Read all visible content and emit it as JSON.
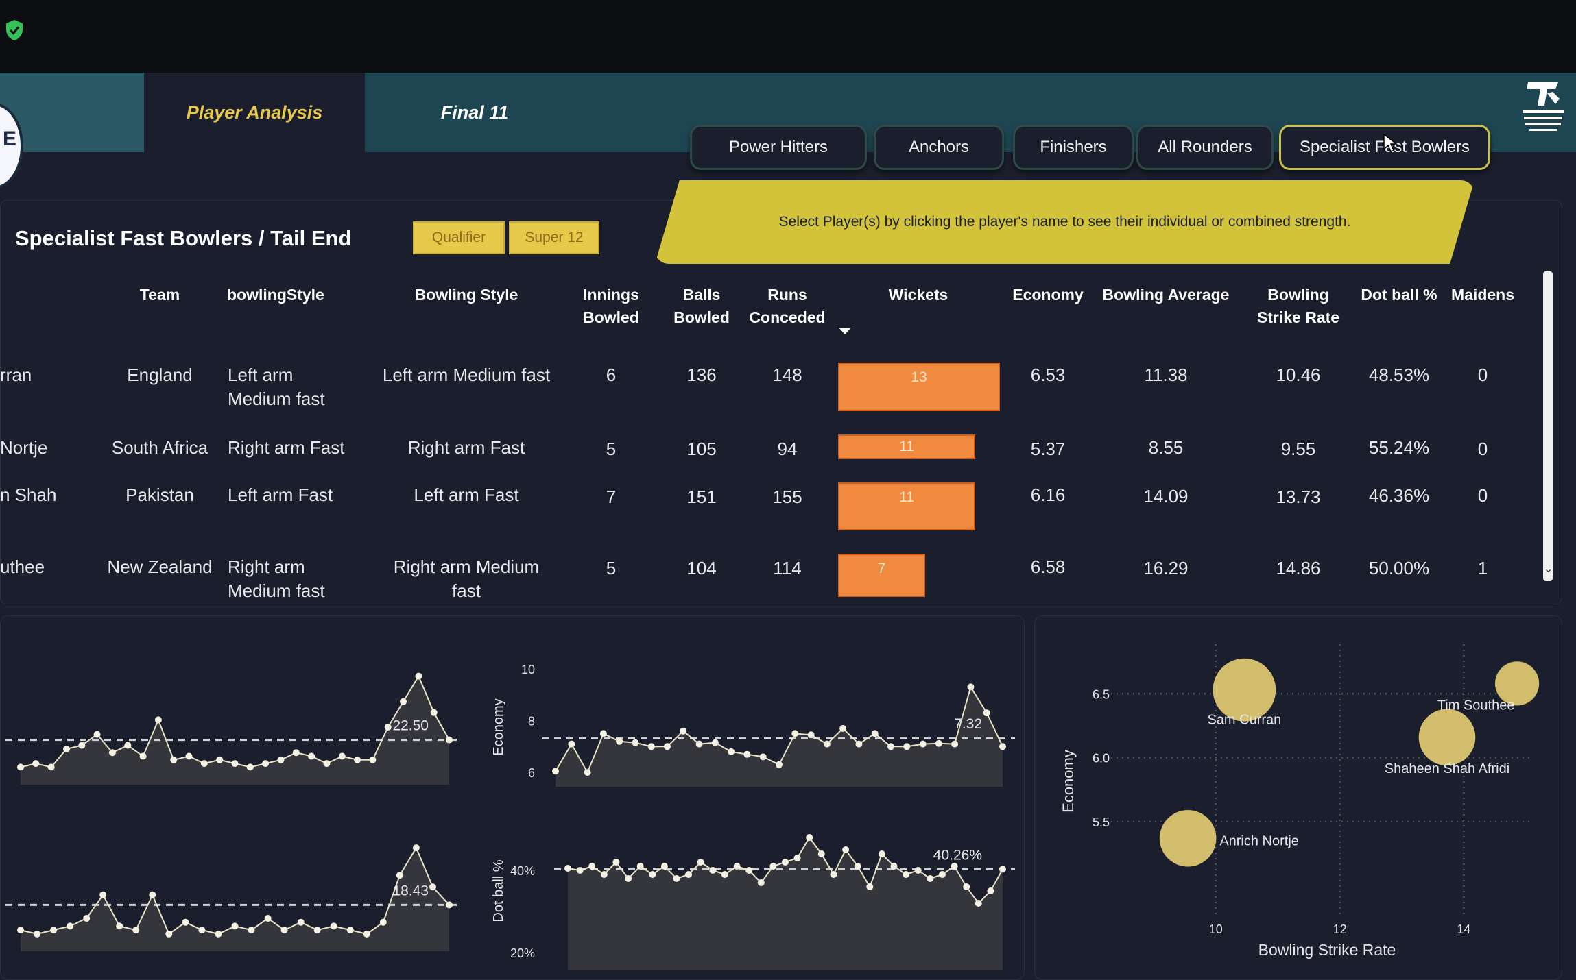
{
  "nav": {
    "tabs": [
      {
        "label": "Player Analysis"
      },
      {
        "label": "Final 11"
      }
    ],
    "logo_partial": "E"
  },
  "segments": [
    {
      "label": "Power Hitters"
    },
    {
      "label": "Anchors"
    },
    {
      "label": "Finishers"
    },
    {
      "label": "All Rounders"
    },
    {
      "label": "Specialist Fast Bowlers",
      "active": true
    }
  ],
  "banner": {
    "text": "Select Player(s) by clicking the player's name to see their individual or combined strength."
  },
  "section": {
    "title": "Specialist Fast Bowlers / Tail End",
    "filters": [
      {
        "label": "Qualifier"
      },
      {
        "label": "Super 12"
      }
    ]
  },
  "table": {
    "headers": {
      "team": "Team",
      "bowlingStyle": "bowlingStyle",
      "bowling_style": "Bowling Style",
      "innings_1": "Innings",
      "innings_2": "Bowled",
      "balls_1": "Balls",
      "balls_2": "Bowled",
      "runs_1": "Runs",
      "runs_2": "Conceded",
      "wickets": "Wickets",
      "economy": "Economy",
      "bowling_average": "Bowling Average",
      "strike_1": "Bowling",
      "strike_2": "Strike Rate",
      "dot": "Dot ball %",
      "maidens": "Maidens"
    },
    "wickets_max": 13,
    "rows": [
      {
        "player": "rran",
        "team": "England",
        "style1_a": "Left arm",
        "style1_b": "Medium fast",
        "style2_a": "Left arm Medium fast",
        "style2_b": "",
        "innings": "6",
        "balls": "136",
        "runs": "148",
        "wickets": 13,
        "wickets_label": "13",
        "economy": "6.53",
        "average": "11.38",
        "strike": "10.46",
        "dot": "48.53%",
        "maidens": "0"
      },
      {
        "player": "Nortje",
        "team": "South Africa",
        "style1_a": "Right arm Fast",
        "style1_b": "",
        "style2_a": "Right arm Fast",
        "style2_b": "",
        "innings": "5",
        "balls": "105",
        "runs": "94",
        "wickets": 11,
        "wickets_label": "11",
        "economy": "5.37",
        "average": "8.55",
        "strike": "9.55",
        "dot": "55.24%",
        "maidens": "0"
      },
      {
        "player": "n Shah",
        "team": "Pakistan",
        "style1_a": "Left arm Fast",
        "style1_b": "",
        "style2_a": "Left arm Fast",
        "style2_b": "",
        "innings": "7",
        "balls": "151",
        "runs": "155",
        "wickets": 11,
        "wickets_label": "11",
        "economy": "6.16",
        "average": "14.09",
        "strike": "13.73",
        "dot": "46.36%",
        "maidens": "0"
      },
      {
        "player": "uthee",
        "team": "New Zealand",
        "style1_a": "Right arm",
        "style1_b": "Medium fast",
        "style2_a": "Right arm Medium",
        "style2_b": "fast",
        "innings": "5",
        "balls": "104",
        "runs": "114",
        "wickets": 7,
        "wickets_label": "7",
        "economy": "6.58",
        "average": "16.29",
        "strike": "14.86",
        "dot": "50.00%",
        "maidens": "1"
      }
    ]
  },
  "chart_data": [
    {
      "type": "line",
      "values": [
        15,
        16,
        15,
        20,
        21,
        24,
        19,
        21,
        18,
        28,
        17,
        18,
        16,
        17,
        16,
        15,
        16,
        17,
        19,
        18,
        16,
        18,
        17,
        17,
        26,
        33,
        40,
        30,
        22.5
      ],
      "reference": 22.5,
      "reference_label": "22.50",
      "ylim": [
        10,
        42
      ]
    },
    {
      "type": "line",
      "values": [
        6.05,
        7.1,
        6.0,
        7.5,
        7.2,
        7.15,
        7.0,
        7.0,
        7.6,
        7.1,
        7.15,
        6.8,
        6.7,
        6.6,
        6.3,
        7.5,
        7.45,
        7.1,
        7.7,
        7.1,
        7.5,
        7.0,
        7.0,
        7.1,
        7.12,
        7.1,
        9.3,
        8.3,
        7.0
      ],
      "reference": 7.32,
      "reference_label": "7.32",
      "ylabel": "Economy",
      "y_ticks": [
        "10",
        "8",
        "6"
      ],
      "ylim": [
        5.5,
        10
      ]
    },
    {
      "type": "line",
      "values": [
        12,
        11,
        12,
        13,
        15,
        21,
        13,
        12,
        21,
        11,
        14,
        12,
        11,
        13,
        12,
        15,
        12,
        14,
        12,
        13,
        12,
        11,
        14,
        26,
        33,
        23,
        18.43
      ],
      "reference": 18.43,
      "reference_label": "18.43",
      "ylim": [
        8,
        36
      ]
    },
    {
      "type": "line",
      "values": [
        40.5,
        40,
        41,
        39,
        42,
        38,
        41,
        39,
        41,
        38,
        39,
        42,
        40,
        39,
        41,
        40,
        37,
        41,
        42,
        43,
        48,
        44,
        39,
        45,
        41,
        36,
        44,
        41,
        39,
        40,
        38,
        39,
        41,
        36,
        32,
        35,
        40.26
      ],
      "reference": 40.26,
      "reference_label": "40.26%",
      "ylabel": "Dot ball %",
      "y_ticks": [
        "40%",
        "20%"
      ],
      "ylim": [
        20,
        50
      ]
    },
    {
      "type": "scatter",
      "xlabel": "Bowling Strike Rate",
      "ylabel": "Economy",
      "x_ticks": [
        "10",
        "12",
        "14"
      ],
      "y_ticks": [
        "6.5",
        "6.0",
        "5.5"
      ],
      "xlim": [
        8,
        15.5
      ],
      "ylim": [
        5.2,
        6.7
      ],
      "points": [
        {
          "label": "Sam Curran",
          "x": 10.46,
          "y": 6.53,
          "size": 13
        },
        {
          "label": "Anrich Nortje",
          "x": 9.55,
          "y": 5.37,
          "size": 11
        },
        {
          "label": "Shaheen Shah Afridi",
          "x": 13.73,
          "y": 6.16,
          "size": 11
        },
        {
          "label": "Tim Southee",
          "x": 14.86,
          "y": 6.58,
          "size": 7
        }
      ]
    }
  ],
  "colors": {
    "accent": "#e8c84a",
    "bar": "#f08a3e",
    "banner": "#d3c33a",
    "point": "#dcc670",
    "nav": "#1e4652"
  }
}
